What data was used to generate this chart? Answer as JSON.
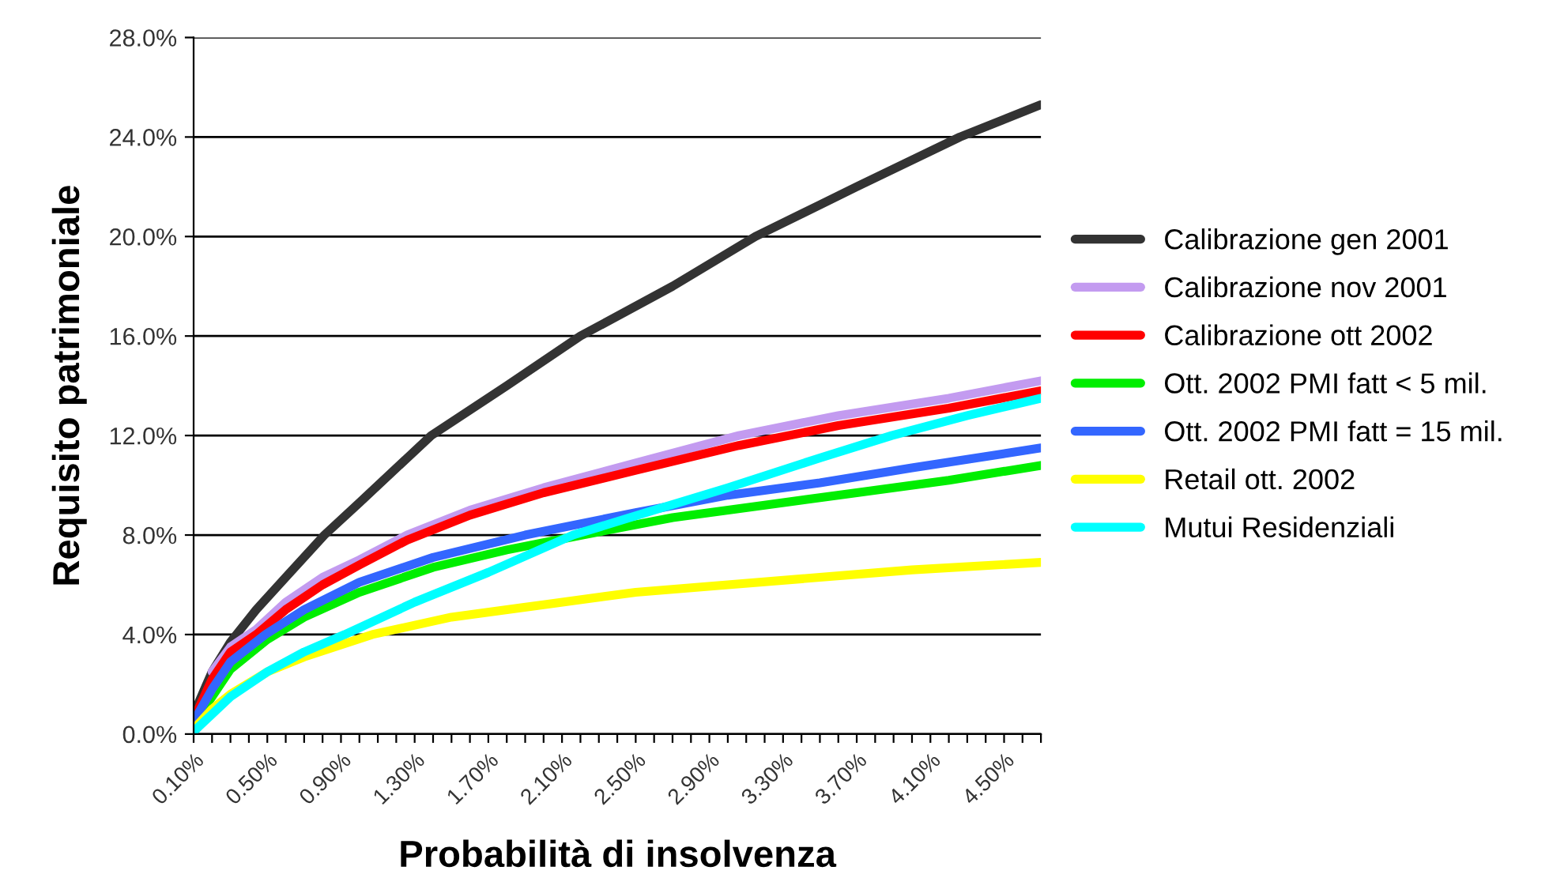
{
  "chart_data": {
    "type": "line",
    "xlabel": "Probabilità di insolvenza",
    "ylabel": "Requisito patrimoniale",
    "xlim": [
      0.1,
      4.7
    ],
    "xticks": [
      {
        "value": 0.1,
        "label": "0.10%"
      },
      {
        "value": 0.2,
        "label": null
      },
      {
        "value": 0.3,
        "label": null
      },
      {
        "value": 0.4,
        "label": null
      },
      {
        "value": 0.5,
        "label": "0.50%"
      },
      {
        "value": 0.6,
        "label": null
      },
      {
        "value": 0.7,
        "label": null
      },
      {
        "value": 0.8,
        "label": null
      },
      {
        "value": 0.9,
        "label": "0.90%"
      },
      {
        "value": 1.0,
        "label": null
      },
      {
        "value": 1.1,
        "label": null
      },
      {
        "value": 1.2,
        "label": null
      },
      {
        "value": 1.3,
        "label": "1.30%"
      },
      {
        "value": 1.4,
        "label": null
      },
      {
        "value": 1.5,
        "label": null
      },
      {
        "value": 1.6,
        "label": null
      },
      {
        "value": 1.7,
        "label": "1.70%"
      },
      {
        "value": 1.8,
        "label": null
      },
      {
        "value": 1.9,
        "label": null
      },
      {
        "value": 2.0,
        "label": null
      },
      {
        "value": 2.1,
        "label": "2.10%"
      },
      {
        "value": 2.2,
        "label": null
      },
      {
        "value": 2.3,
        "label": null
      },
      {
        "value": 2.4,
        "label": null
      },
      {
        "value": 2.5,
        "label": "2.50%"
      },
      {
        "value": 2.6,
        "label": null
      },
      {
        "value": 2.7,
        "label": null
      },
      {
        "value": 2.8,
        "label": null
      },
      {
        "value": 2.9,
        "label": "2.90%"
      },
      {
        "value": 3.0,
        "label": null
      },
      {
        "value": 3.1,
        "label": null
      },
      {
        "value": 3.2,
        "label": null
      },
      {
        "value": 3.3,
        "label": "3.30%"
      },
      {
        "value": 3.4,
        "label": null
      },
      {
        "value": 3.5,
        "label": null
      },
      {
        "value": 3.6,
        "label": null
      },
      {
        "value": 3.7,
        "label": "3.70%"
      },
      {
        "value": 3.8,
        "label": null
      },
      {
        "value": 3.9,
        "label": null
      },
      {
        "value": 4.0,
        "label": null
      },
      {
        "value": 4.1,
        "label": "4.10%"
      },
      {
        "value": 4.2,
        "label": null
      },
      {
        "value": 4.3,
        "label": null
      },
      {
        "value": 4.4,
        "label": null
      },
      {
        "value": 4.5,
        "label": "4.50%"
      },
      {
        "value": 4.6,
        "label": null
      },
      {
        "value": 4.7,
        "label": null
      }
    ],
    "ylim": [
      0,
      28
    ],
    "yticks": [
      {
        "value": 0,
        "label": "0.0%"
      },
      {
        "value": 4,
        "label": "4.0%"
      },
      {
        "value": 8,
        "label": "8.0%"
      },
      {
        "value": 12,
        "label": "12.0%"
      },
      {
        "value": 16,
        "label": "16.0%"
      },
      {
        "value": 20,
        "label": "20.0%"
      },
      {
        "value": 24,
        "label": "24.0%"
      },
      {
        "value": 28,
        "label": "28.0%"
      }
    ],
    "grid": "y",
    "legend": "right",
    "marker": "none",
    "line_style": "solid",
    "series": [
      {
        "name": "Calibrazione gen 2001",
        "color": "#333333",
        "x": [
          0.1,
          0.2,
          0.3,
          0.44,
          0.6,
          0.81,
          1.0,
          1.39,
          1.8,
          2.2,
          2.7,
          3.15,
          3.7,
          4.26,
          4.7
        ],
        "values": [
          0.8,
          2.5,
          3.7,
          5.0,
          6.3,
          8.0,
          9.3,
          12.0,
          14.0,
          16.0,
          18.0,
          20.0,
          22.0,
          24.0,
          25.3
        ]
      },
      {
        "name": "Calibrazione nov 2001",
        "color": "#c39bf0",
        "x": [
          0.2,
          0.3,
          0.44,
          0.6,
          0.8,
          1.0,
          1.26,
          1.6,
          2.0,
          2.5,
          3.06,
          3.6,
          4.2,
          4.7
        ],
        "values": [
          2.5,
          3.5,
          4.2,
          5.3,
          6.3,
          7.0,
          8.0,
          9.0,
          9.9,
          10.9,
          12.0,
          12.8,
          13.5,
          14.2
        ]
      },
      {
        "name": "Calibrazione ott 2002",
        "color": "#ff0000",
        "x": [
          0.1,
          0.2,
          0.3,
          0.44,
          0.6,
          0.8,
          1.0,
          1.26,
          1.6,
          2.0,
          2.5,
          3.06,
          3.6,
          4.2,
          4.7
        ],
        "values": [
          0.6,
          2.2,
          3.3,
          4.0,
          5.0,
          6.0,
          6.8,
          7.8,
          8.8,
          9.7,
          10.6,
          11.6,
          12.4,
          13.1,
          13.8
        ]
      },
      {
        "name": "Ott. 2002 PMI fatt < 5 mil.",
        "color": "#00ee00",
        "x": [
          0.1,
          0.2,
          0.3,
          0.5,
          0.7,
          1.0,
          1.4,
          1.8,
          2.21,
          2.7,
          3.2,
          3.7,
          4.2,
          4.7
        ],
        "values": [
          0.4,
          1.5,
          2.6,
          3.8,
          4.7,
          5.7,
          6.7,
          7.4,
          8.0,
          8.7,
          9.2,
          9.7,
          10.2,
          10.8
        ]
      },
      {
        "name": "Ott. 2002 PMI fatt = 15 mil.",
        "color": "#3366ff",
        "x": [
          0.1,
          0.2,
          0.3,
          0.49,
          0.7,
          1.0,
          1.4,
          1.9,
          2.5,
          3.0,
          3.5,
          4.0,
          4.7
        ],
        "values": [
          0.5,
          1.8,
          2.9,
          4.0,
          5.0,
          6.1,
          7.1,
          8.0,
          8.9,
          9.6,
          10.1,
          10.7,
          11.5
        ]
      },
      {
        "name": "Retail ott. 2002",
        "color": "#ffff00",
        "x": [
          0.1,
          0.2,
          0.3,
          0.5,
          0.7,
          1.07,
          1.5,
          2.0,
          2.5,
          3.0,
          3.5,
          4.0,
          4.7
        ],
        "values": [
          0.2,
          1.0,
          1.6,
          2.5,
          3.1,
          4.0,
          4.7,
          5.2,
          5.7,
          6.0,
          6.3,
          6.6,
          6.9
        ]
      },
      {
        "name": "Mutui Residenziali",
        "color": "#00ffff",
        "x": [
          0.1,
          0.2,
          0.3,
          0.5,
          0.7,
          0.92,
          1.3,
          1.7,
          2.16,
          2.6,
          3.0,
          3.5,
          3.89,
          4.3,
          4.7
        ],
        "values": [
          0.1,
          0.8,
          1.5,
          2.5,
          3.3,
          4.0,
          5.3,
          6.5,
          8.0,
          9.0,
          9.9,
          11.1,
          12.0,
          12.8,
          13.5
        ]
      }
    ]
  }
}
